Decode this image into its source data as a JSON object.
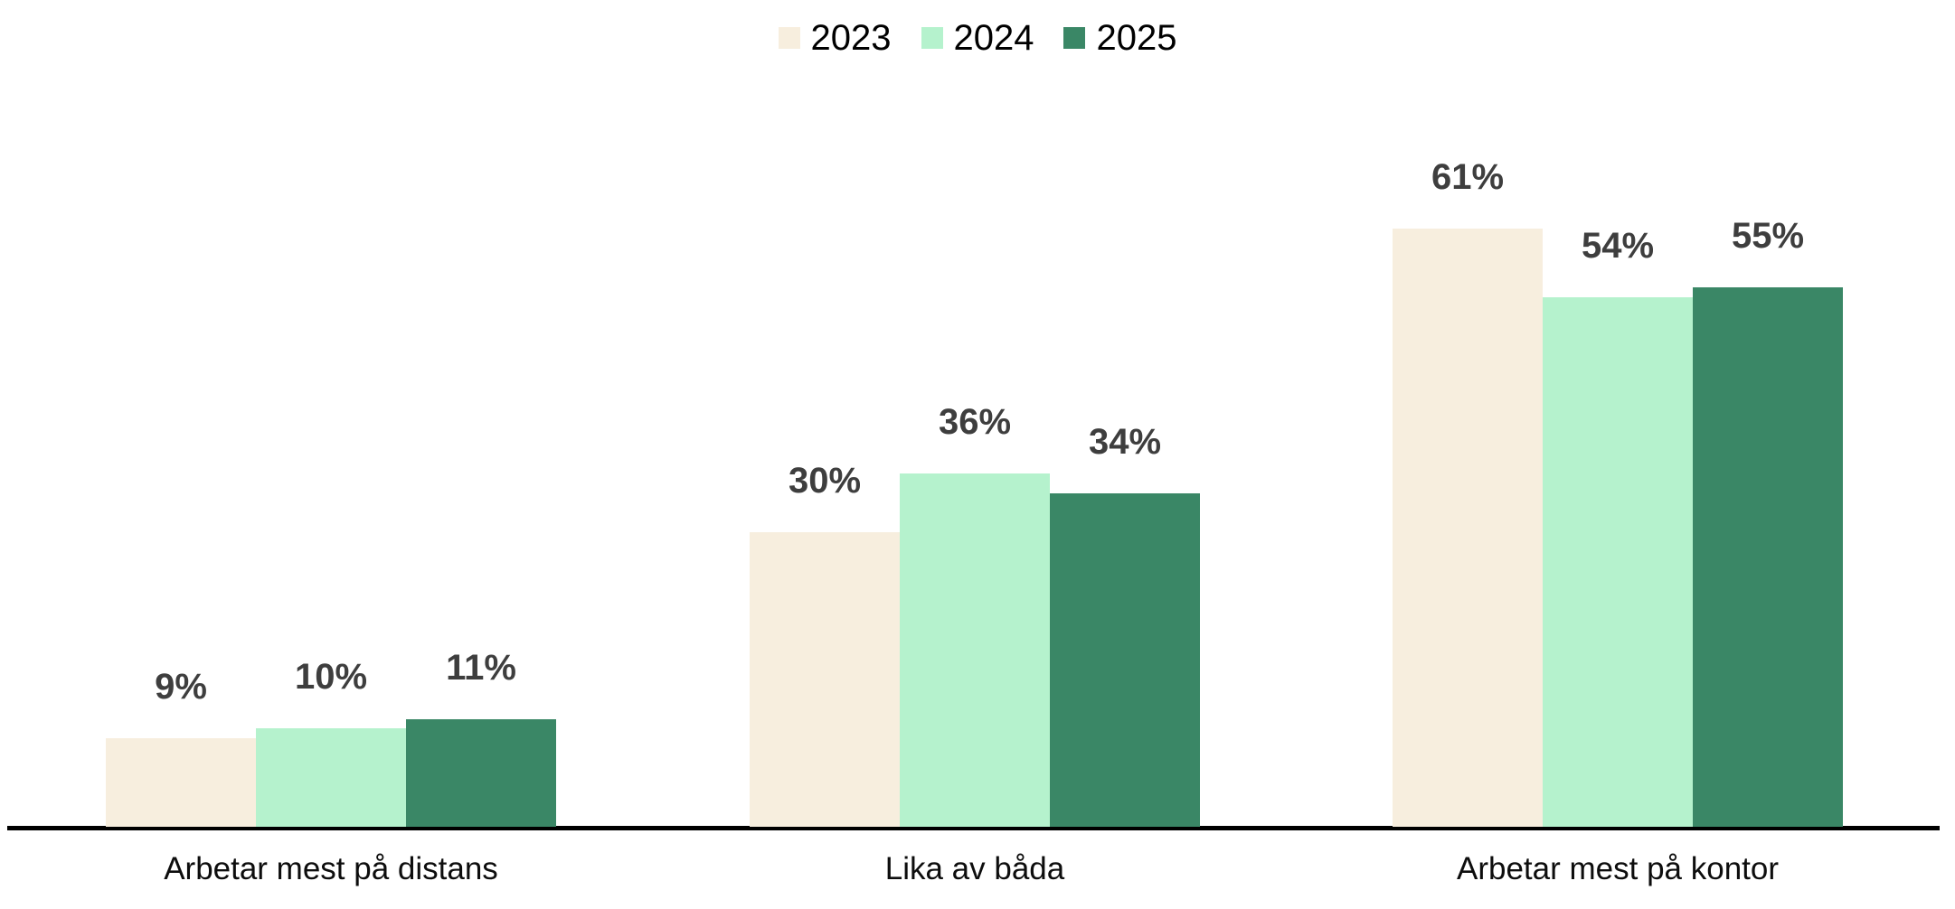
{
  "chart_data": {
    "type": "bar",
    "categories": [
      "Arbetar mest på distans",
      "Lika av båda",
      "Arbetar mest på kontor"
    ],
    "series": [
      {
        "name": "2023",
        "color": "#F7EEDE",
        "values": [
          9,
          30,
          61
        ]
      },
      {
        "name": "2024",
        "color": "#B5F2CD",
        "values": [
          10,
          36,
          54
        ]
      },
      {
        "name": "2025",
        "color": "#3A8766",
        "values": [
          11,
          34,
          55
        ]
      }
    ],
    "value_labels": [
      [
        "9%",
        "30%",
        "61%"
      ],
      [
        "10%",
        "36%",
        "54%"
      ],
      [
        "11%",
        "34%",
        "55%"
      ]
    ],
    "value_suffix": "%",
    "title": "",
    "xlabel": "",
    "ylabel": "",
    "ylim": [
      0,
      65
    ],
    "grid": false,
    "legend_position": "top-center",
    "axis": {
      "x_axis_visible": true,
      "y_axis_visible": false
    },
    "colors": {
      "data_label": "#3E3E3E",
      "category_label": "#0d0d0d",
      "axis_line": "#000000",
      "background": "#ffffff"
    }
  }
}
